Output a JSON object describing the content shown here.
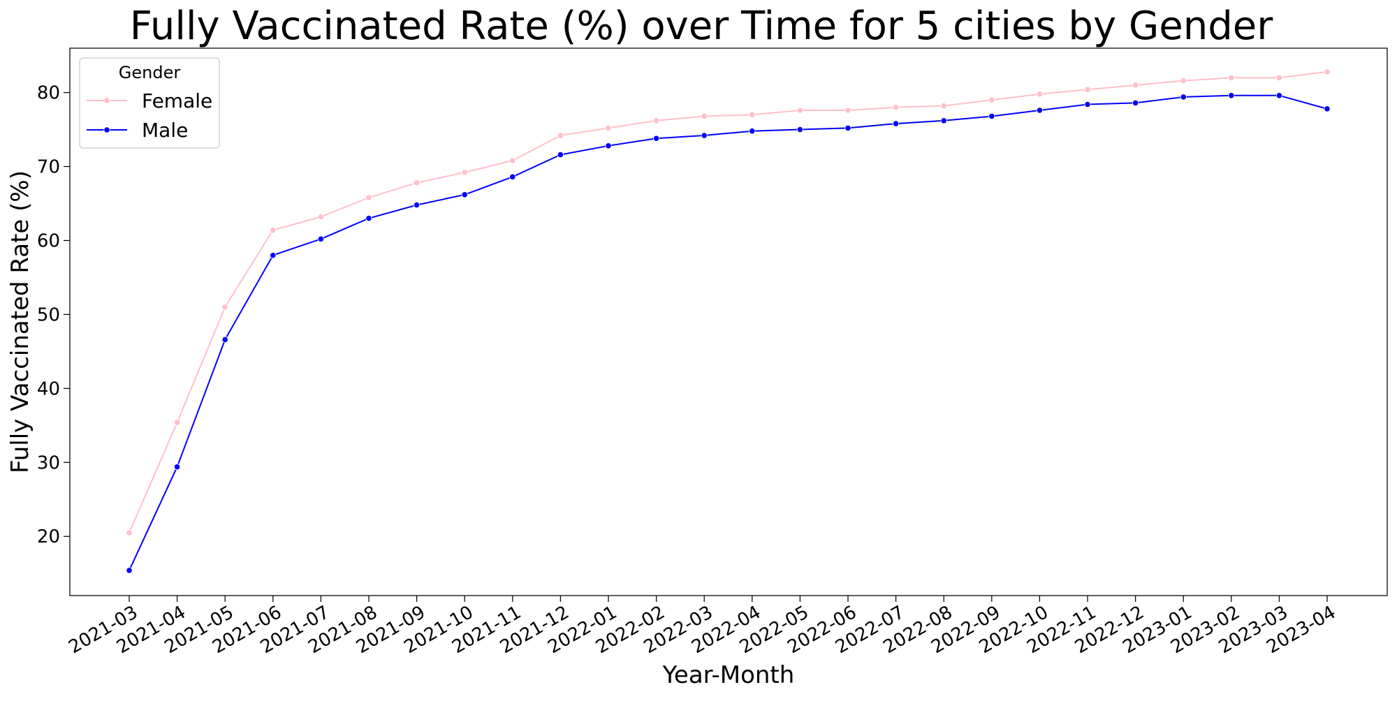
{
  "chart_data": {
    "type": "line",
    "title": "Fully Vaccinated Rate (%) over Time for 5 cities by Gender",
    "xlabel": "Year-Month",
    "ylabel": "Fully Vaccinated Rate (%)",
    "categories": [
      "2021-03",
      "2021-04",
      "2021-05",
      "2021-06",
      "2021-07",
      "2021-08",
      "2021-09",
      "2021-10",
      "2021-11",
      "2021-12",
      "2022-01",
      "2022-02",
      "2022-03",
      "2022-04",
      "2022-05",
      "2022-06",
      "2022-07",
      "2022-08",
      "2022-09",
      "2022-10",
      "2022-11",
      "2022-12",
      "2023-01",
      "2023-02",
      "2023-03",
      "2023-04"
    ],
    "ylim": [
      12,
      86
    ],
    "yticks": [
      20,
      30,
      40,
      50,
      60,
      70,
      80
    ],
    "grid": false,
    "legend": {
      "title": "Gender",
      "placement": "top-left"
    },
    "series": [
      {
        "name": "Female",
        "color": "#FFC0CB",
        "values": [
          20.5,
          35.4,
          51.0,
          61.4,
          63.2,
          65.8,
          67.8,
          69.2,
          70.8,
          74.2,
          75.2,
          76.2,
          76.8,
          77.0,
          77.6,
          77.6,
          78.0,
          78.2,
          79.0,
          79.8,
          80.4,
          81.0,
          81.6,
          82.0,
          82.0,
          82.8
        ]
      },
      {
        "name": "Male",
        "color": "#0000FF",
        "values": [
          15.4,
          29.4,
          46.6,
          58.0,
          60.2,
          63.0,
          64.8,
          66.2,
          68.6,
          71.6,
          72.8,
          73.8,
          74.2,
          74.8,
          75.0,
          75.2,
          75.8,
          76.2,
          76.8,
          77.6,
          78.4,
          78.6,
          79.4,
          79.6,
          79.6,
          77.8
        ]
      }
    ]
  }
}
